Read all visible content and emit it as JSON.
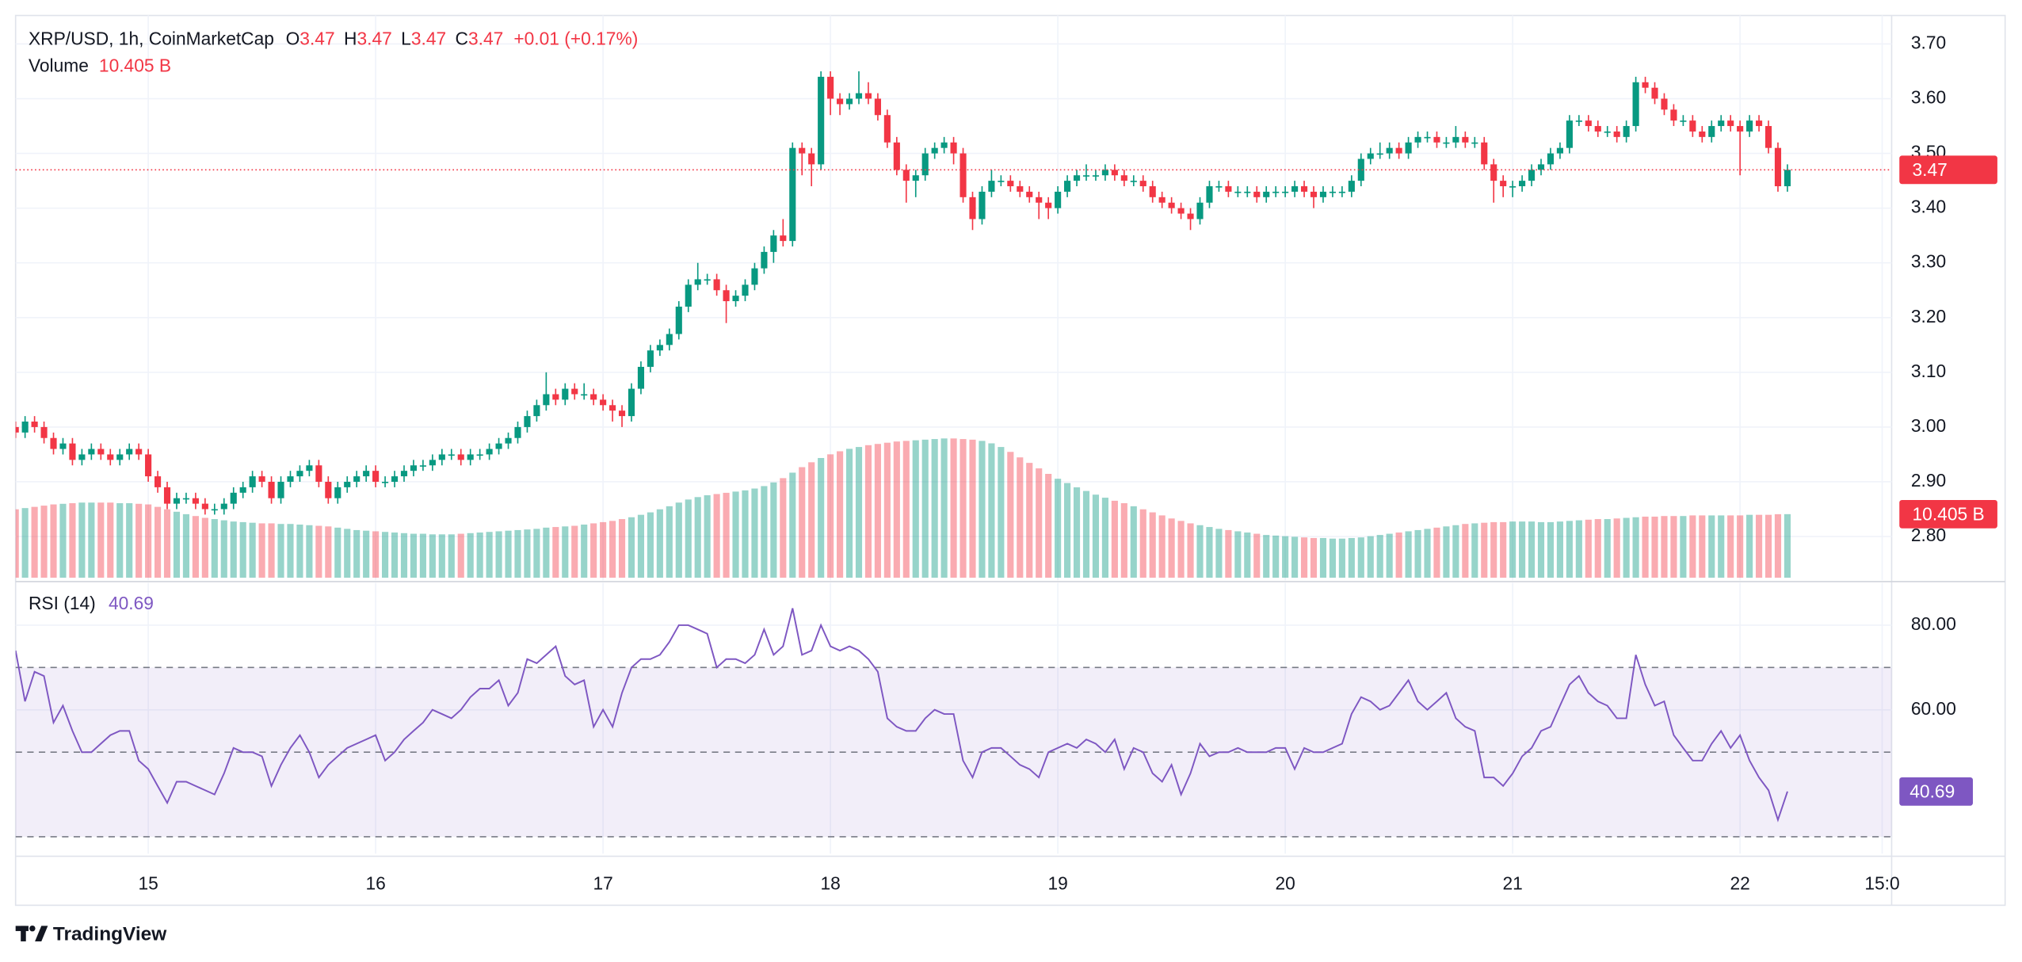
{
  "chart_data": {
    "type": "candlestick",
    "title": "XRP/USD, 1h, CoinMarketCap",
    "ohlc_labels": [
      "O",
      "H",
      "L",
      "C"
    ],
    "ohlc_values": [
      3.47,
      3.47,
      3.47,
      3.47
    ],
    "change": "+0.01 (+0.17%)",
    "up_color": "#089981",
    "down_color": "#f23645",
    "last_price": 3.47,
    "grid": true,
    "xlim": [
      0,
      198
    ],
    "xticks": [
      {
        "value": 14,
        "label": "15"
      },
      {
        "value": 38,
        "label": "16"
      },
      {
        "value": 62,
        "label": "17"
      },
      {
        "value": 86,
        "label": "18"
      },
      {
        "value": 110,
        "label": "19"
      },
      {
        "value": 134,
        "label": "20"
      },
      {
        "value": 158,
        "label": "21"
      },
      {
        "value": 182,
        "label": "22"
      },
      {
        "value": 197,
        "label": "15:0"
      }
    ],
    "ylim": [
      2.72,
      3.752
    ],
    "yticks": [
      {
        "value": 3.7,
        "label": "3.70"
      },
      {
        "value": 3.6,
        "label": "3.60"
      },
      {
        "value": 3.5,
        "label": "3.50"
      },
      {
        "value": 3.4,
        "label": "3.40"
      },
      {
        "value": 3.3,
        "label": "3.30"
      },
      {
        "value": 3.2,
        "label": "3.20"
      },
      {
        "value": 3.1,
        "label": "3.10"
      },
      {
        "value": 3.0,
        "label": "3.00"
      },
      {
        "value": 2.9,
        "label": "2.90"
      },
      {
        "value": 2.8,
        "label": "2.80"
      }
    ],
    "open": [
      3.0,
      2.99,
      3.01,
      3.0,
      2.98,
      2.96,
      2.97,
      2.94,
      2.95,
      2.96,
      2.95,
      2.94,
      2.95,
      2.96,
      2.95,
      2.91,
      2.89,
      2.86,
      2.87,
      2.87,
      2.86,
      2.85,
      2.85,
      2.86,
      2.88,
      2.89,
      2.91,
      2.9,
      2.87,
      2.9,
      2.91,
      2.92,
      2.93,
      2.9,
      2.87,
      2.89,
      2.9,
      2.91,
      2.92,
      2.9,
      2.9,
      2.91,
      2.92,
      2.93,
      2.93,
      2.94,
      2.95,
      2.95,
      2.94,
      2.95,
      2.95,
      2.96,
      2.97,
      2.98,
      3.0,
      3.02,
      3.04,
      3.06,
      3.05,
      3.07,
      3.06,
      3.06,
      3.05,
      3.04,
      3.03,
      3.02,
      3.07,
      3.11,
      3.14,
      3.15,
      3.17,
      3.22,
      3.26,
      3.27,
      3.27,
      3.25,
      3.23,
      3.24,
      3.26,
      3.29,
      3.32,
      3.35,
      3.34,
      3.51,
      3.5,
      3.48,
      3.64,
      3.6,
      3.59,
      3.6,
      3.61,
      3.6,
      3.57,
      3.52,
      3.47,
      3.45,
      3.46,
      3.5,
      3.51,
      3.52,
      3.5,
      3.42,
      3.38,
      3.43,
      3.45,
      3.45,
      3.44,
      3.43,
      3.42,
      3.41,
      3.4,
      3.43,
      3.45,
      3.46,
      3.46,
      3.46,
      3.47,
      3.46,
      3.45,
      3.45,
      3.44,
      3.42,
      3.41,
      3.4,
      3.39,
      3.38,
      3.41,
      3.44,
      3.44,
      3.43,
      3.43,
      3.43,
      3.42,
      3.43,
      3.43,
      3.43,
      3.44,
      3.43,
      3.42,
      3.43,
      3.43,
      3.43,
      3.45,
      3.49,
      3.5,
      3.5,
      3.51,
      3.5,
      3.52,
      3.53,
      3.53,
      3.52,
      3.52,
      3.53,
      3.52,
      3.52,
      3.48,
      3.45,
      3.44,
      3.44,
      3.45,
      3.47,
      3.48,
      3.5,
      3.51,
      3.56,
      3.56,
      3.55,
      3.54,
      3.54,
      3.53,
      3.55,
      3.63,
      3.62,
      3.6,
      3.58,
      3.56,
      3.56,
      3.54,
      3.53,
      3.55,
      3.56,
      3.55,
      3.54,
      3.56,
      3.55,
      3.51,
      3.44
    ],
    "high": [
      3.01,
      3.02,
      3.02,
      3.01,
      2.99,
      2.98,
      2.98,
      2.96,
      2.97,
      2.97,
      2.96,
      2.96,
      2.97,
      2.97,
      2.96,
      2.92,
      2.9,
      2.88,
      2.88,
      2.88,
      2.87,
      2.86,
      2.87,
      2.89,
      2.9,
      2.92,
      2.92,
      2.91,
      2.91,
      2.92,
      2.93,
      2.94,
      2.94,
      2.91,
      2.9,
      2.91,
      2.92,
      2.93,
      2.93,
      2.91,
      2.92,
      2.93,
      2.94,
      2.94,
      2.95,
      2.96,
      2.96,
      2.96,
      2.96,
      2.96,
      2.97,
      2.98,
      2.99,
      3.01,
      3.03,
      3.05,
      3.1,
      3.07,
      3.08,
      3.08,
      3.08,
      3.07,
      3.06,
      3.05,
      3.04,
      3.08,
      3.12,
      3.15,
      3.16,
      3.18,
      3.23,
      3.27,
      3.3,
      3.28,
      3.28,
      3.26,
      3.25,
      3.27,
      3.3,
      3.33,
      3.36,
      3.38,
      3.52,
      3.52,
      3.51,
      3.65,
      3.65,
      3.61,
      3.61,
      3.65,
      3.63,
      3.61,
      3.58,
      3.53,
      3.48,
      3.47,
      3.51,
      3.52,
      3.53,
      3.53,
      3.51,
      3.43,
      3.44,
      3.47,
      3.46,
      3.46,
      3.45,
      3.44,
      3.43,
      3.42,
      3.44,
      3.46,
      3.47,
      3.48,
      3.47,
      3.48,
      3.48,
      3.47,
      3.46,
      3.46,
      3.45,
      3.43,
      3.42,
      3.41,
      3.4,
      3.42,
      3.45,
      3.45,
      3.45,
      3.44,
      3.44,
      3.44,
      3.44,
      3.44,
      3.44,
      3.45,
      3.45,
      3.44,
      3.44,
      3.44,
      3.44,
      3.46,
      3.5,
      3.51,
      3.52,
      3.52,
      3.52,
      3.53,
      3.54,
      3.54,
      3.54,
      3.53,
      3.55,
      3.54,
      3.53,
      3.53,
      3.49,
      3.46,
      3.45,
      3.46,
      3.48,
      3.49,
      3.51,
      3.52,
      3.57,
      3.57,
      3.57,
      3.56,
      3.55,
      3.55,
      3.56,
      3.64,
      3.64,
      3.63,
      3.61,
      3.59,
      3.57,
      3.57,
      3.55,
      3.56,
      3.57,
      3.57,
      3.56,
      3.57,
      3.57,
      3.56,
      3.52,
      3.48
    ],
    "low": [
      2.98,
      2.98,
      2.99,
      2.97,
      2.95,
      2.95,
      2.93,
      2.93,
      2.94,
      2.94,
      2.93,
      2.93,
      2.94,
      2.94,
      2.9,
      2.88,
      2.85,
      2.85,
      2.86,
      2.85,
      2.84,
      2.84,
      2.84,
      2.85,
      2.87,
      2.88,
      2.89,
      2.86,
      2.86,
      2.89,
      2.9,
      2.91,
      2.89,
      2.86,
      2.86,
      2.88,
      2.89,
      2.9,
      2.89,
      2.89,
      2.89,
      2.9,
      2.91,
      2.92,
      2.92,
      2.93,
      2.94,
      2.93,
      2.93,
      2.94,
      2.94,
      2.95,
      2.96,
      2.97,
      2.99,
      3.01,
      3.03,
      3.04,
      3.04,
      3.05,
      3.05,
      3.04,
      3.03,
      3.01,
      3.0,
      3.01,
      3.06,
      3.1,
      3.13,
      3.14,
      3.16,
      3.21,
      3.25,
      3.26,
      3.24,
      3.19,
      3.22,
      3.23,
      3.25,
      3.28,
      3.3,
      3.33,
      3.33,
      3.46,
      3.44,
      3.47,
      3.57,
      3.57,
      3.58,
      3.59,
      3.59,
      3.56,
      3.51,
      3.46,
      3.41,
      3.42,
      3.45,
      3.49,
      3.5,
      3.48,
      3.41,
      3.36,
      3.37,
      3.42,
      3.44,
      3.43,
      3.42,
      3.41,
      3.38,
      3.38,
      3.39,
      3.42,
      3.44,
      3.45,
      3.45,
      3.45,
      3.45,
      3.44,
      3.44,
      3.43,
      3.41,
      3.4,
      3.39,
      3.38,
      3.36,
      3.37,
      3.4,
      3.43,
      3.42,
      3.42,
      3.42,
      3.41,
      3.41,
      3.42,
      3.42,
      3.42,
      3.42,
      3.4,
      3.41,
      3.42,
      3.42,
      3.42,
      3.44,
      3.48,
      3.49,
      3.49,
      3.49,
      3.49,
      3.51,
      3.52,
      3.51,
      3.51,
      3.51,
      3.51,
      3.51,
      3.47,
      3.41,
      3.42,
      3.42,
      3.43,
      3.44,
      3.46,
      3.47,
      3.49,
      3.5,
      3.55,
      3.54,
      3.53,
      3.53,
      3.52,
      3.52,
      3.54,
      3.61,
      3.59,
      3.57,
      3.55,
      3.55,
      3.53,
      3.52,
      3.52,
      3.54,
      3.54,
      3.46,
      3.53,
      3.54,
      3.5,
      3.43,
      3.43
    ],
    "close": [
      2.99,
      3.01,
      3.0,
      2.98,
      2.96,
      2.97,
      2.94,
      2.95,
      2.96,
      2.95,
      2.94,
      2.95,
      2.96,
      2.95,
      2.91,
      2.89,
      2.86,
      2.87,
      2.87,
      2.86,
      2.85,
      2.85,
      2.86,
      2.88,
      2.89,
      2.91,
      2.9,
      2.87,
      2.9,
      2.91,
      2.92,
      2.93,
      2.9,
      2.87,
      2.89,
      2.9,
      2.91,
      2.92,
      2.9,
      2.9,
      2.91,
      2.92,
      2.93,
      2.93,
      2.94,
      2.95,
      2.95,
      2.94,
      2.95,
      2.95,
      2.96,
      2.97,
      2.98,
      3.0,
      3.02,
      3.04,
      3.06,
      3.05,
      3.07,
      3.06,
      3.06,
      3.05,
      3.04,
      3.03,
      3.02,
      3.07,
      3.11,
      3.14,
      3.15,
      3.17,
      3.22,
      3.26,
      3.27,
      3.27,
      3.25,
      3.23,
      3.24,
      3.26,
      3.29,
      3.32,
      3.35,
      3.34,
      3.51,
      3.5,
      3.48,
      3.64,
      3.6,
      3.59,
      3.6,
      3.61,
      3.6,
      3.57,
      3.52,
      3.47,
      3.45,
      3.46,
      3.5,
      3.51,
      3.52,
      3.5,
      3.42,
      3.38,
      3.43,
      3.45,
      3.45,
      3.44,
      3.43,
      3.42,
      3.41,
      3.4,
      3.43,
      3.45,
      3.46,
      3.46,
      3.46,
      3.47,
      3.46,
      3.45,
      3.45,
      3.44,
      3.42,
      3.41,
      3.4,
      3.39,
      3.38,
      3.41,
      3.44,
      3.44,
      3.43,
      3.43,
      3.43,
      3.42,
      3.43,
      3.43,
      3.43,
      3.44,
      3.43,
      3.42,
      3.43,
      3.43,
      3.43,
      3.45,
      3.49,
      3.5,
      3.5,
      3.51,
      3.5,
      3.52,
      3.53,
      3.53,
      3.52,
      3.52,
      3.53,
      3.52,
      3.52,
      3.48,
      3.45,
      3.44,
      3.44,
      3.45,
      3.47,
      3.48,
      3.5,
      3.51,
      3.56,
      3.56,
      3.55,
      3.54,
      3.54,
      3.53,
      3.55,
      3.63,
      3.62,
      3.6,
      3.58,
      3.56,
      3.56,
      3.54,
      3.53,
      3.55,
      3.56,
      3.55,
      3.54,
      3.56,
      3.55,
      3.51,
      3.44,
      3.47
    ],
    "volume": {
      "name": "Volume",
      "last_label": "10.405 B",
      "values": [
        11.2,
        11.4,
        11.6,
        11.8,
        12.0,
        12.1,
        12.2,
        12.3,
        12.3,
        12.3,
        12.3,
        12.2,
        12.2,
        12.1,
        12.0,
        11.6,
        11.2,
        10.8,
        10.4,
        10.1,
        9.8,
        9.6,
        9.4,
        9.2,
        9.1,
        9.0,
        8.9,
        8.9,
        8.8,
        8.8,
        8.7,
        8.6,
        8.5,
        8.4,
        8.2,
        8.0,
        7.8,
        7.7,
        7.6,
        7.5,
        7.4,
        7.3,
        7.2,
        7.2,
        7.1,
        7.1,
        7.1,
        7.2,
        7.3,
        7.4,
        7.5,
        7.6,
        7.7,
        7.8,
        7.9,
        8.0,
        8.2,
        8.3,
        8.4,
        8.5,
        8.7,
        8.9,
        9.1,
        9.3,
        9.6,
        9.9,
        10.3,
        10.7,
        11.2,
        11.7,
        12.3,
        12.8,
        13.2,
        13.5,
        13.7,
        13.9,
        14.1,
        14.3,
        14.6,
        15.0,
        15.6,
        16.3,
        17.2,
        18.1,
        18.9,
        19.6,
        20.2,
        20.7,
        21.1,
        21.4,
        21.7,
        21.9,
        22.1,
        22.3,
        22.4,
        22.5,
        22.6,
        22.7,
        22.8,
        22.8,
        22.7,
        22.6,
        22.4,
        22.0,
        21.4,
        20.6,
        19.7,
        18.8,
        17.9,
        17.0,
        16.2,
        15.5,
        14.8,
        14.2,
        13.6,
        13.1,
        12.6,
        12.2,
        11.7,
        11.2,
        10.7,
        10.2,
        9.7,
        9.3,
        8.9,
        8.6,
        8.3,
        8.0,
        7.8,
        7.6,
        7.4,
        7.2,
        7.0,
        6.9,
        6.8,
        6.7,
        6.6,
        6.5,
        6.5,
        6.4,
        6.4,
        6.5,
        6.6,
        6.8,
        7.0,
        7.2,
        7.4,
        7.6,
        7.8,
        8.0,
        8.2,
        8.4,
        8.6,
        8.8,
        8.9,
        9.0,
        9.1,
        9.1,
        9.2,
        9.2,
        9.2,
        9.1,
        9.1,
        9.2,
        9.3,
        9.4,
        9.5,
        9.6,
        9.6,
        9.7,
        9.8,
        9.9,
        10.0,
        10.0,
        10.1,
        10.1,
        10.1,
        10.2,
        10.2,
        10.2,
        10.2,
        10.2,
        10.2,
        10.3,
        10.3,
        10.3,
        10.4,
        10.405
      ]
    },
    "rsi": {
      "type": "line",
      "name": "RSI (14)",
      "color": "#7e57c2",
      "ylim": [
        26,
        90
      ],
      "yticks": [
        {
          "value": 80,
          "label": "80.00"
        },
        {
          "value": 60,
          "label": "60.00"
        }
      ],
      "bands": [
        70,
        50,
        30
      ],
      "values": [
        74,
        62,
        69,
        68,
        57,
        61,
        55,
        50,
        50,
        52,
        54,
        55,
        55,
        48,
        46,
        42,
        38,
        43,
        43,
        42,
        41,
        40,
        45,
        51,
        50,
        50,
        49,
        42,
        47,
        51,
        54,
        50,
        44,
        47,
        49,
        51,
        52,
        53,
        54,
        48,
        50,
        53,
        55,
        57,
        60,
        59,
        58,
        60,
        63,
        65,
        65,
        67,
        61,
        64,
        72,
        71,
        73,
        75,
        68,
        66,
        67,
        56,
        60,
        56,
        64,
        70,
        72,
        72,
        73,
        76,
        80,
        80,
        79,
        78,
        70,
        72,
        72,
        71,
        73,
        79,
        73,
        75,
        84,
        73,
        74,
        80,
        75,
        74,
        75,
        74,
        72,
        69,
        58,
        56,
        55,
        55,
        58,
        60,
        59,
        59,
        48,
        44,
        50,
        51,
        51,
        49,
        47,
        46,
        44,
        50,
        51,
        52,
        51,
        53,
        52,
        50,
        53,
        46,
        51,
        50,
        45,
        43,
        47,
        40,
        45,
        52,
        49,
        50,
        50,
        51,
        50,
        50,
        50,
        51,
        51,
        46,
        51,
        50,
        50,
        51,
        52,
        59,
        63,
        62,
        60,
        61,
        64,
        67,
        62,
        60,
        62,
        64,
        58,
        56,
        55,
        44,
        44,
        42,
        45,
        49,
        51,
        55,
        56,
        61,
        66,
        68,
        64,
        62,
        61,
        58,
        58,
        73,
        66,
        61,
        62,
        54,
        51,
        48,
        48,
        52,
        55,
        51,
        54,
        48,
        44,
        41,
        34,
        40.69
      ]
    },
    "brand": "TradingView"
  }
}
